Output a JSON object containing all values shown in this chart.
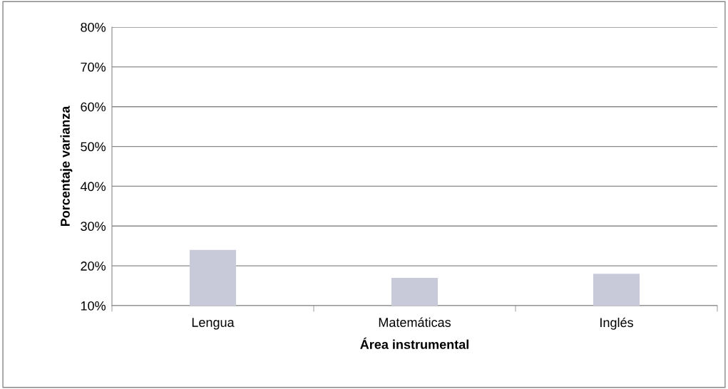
{
  "chart_data": {
    "type": "bar",
    "xlabel": "Área instrumental",
    "ylabel": "Porcentaje varianza",
    "categories": [
      "Lengua",
      "Matemáticas",
      "Inglés"
    ],
    "values": [
      24,
      17,
      18
    ],
    "color": "#c9cad9",
    "ylim": [
      10,
      80
    ],
    "yticks": [
      {
        "value": 10,
        "label": "10%"
      },
      {
        "value": 20,
        "label": "20%"
      },
      {
        "value": 30,
        "label": "30%"
      },
      {
        "value": 40,
        "label": "40%"
      },
      {
        "value": 50,
        "label": "50%"
      },
      {
        "value": 60,
        "label": "60%"
      },
      {
        "value": 70,
        "label": "70%"
      },
      {
        "value": 80,
        "label": "80%"
      }
    ],
    "grid": "y",
    "legend": false
  }
}
